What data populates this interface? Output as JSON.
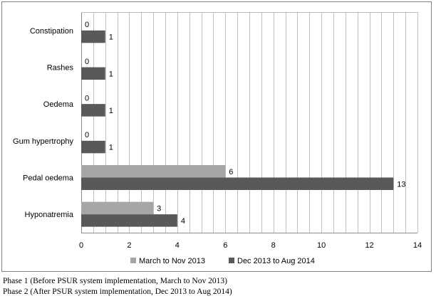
{
  "chart_data": {
    "type": "bar",
    "orientation": "horizontal",
    "categories": [
      "Constipation",
      "Rashes",
      "Oedema",
      "Gum hypertrophy",
      "Pedal oedema",
      "Hyponatremia"
    ],
    "series": [
      {
        "name": "March to Nov 2013",
        "values": [
          0,
          0,
          0,
          0,
          6,
          3
        ],
        "color": "#a6a6a6"
      },
      {
        "name": "Dec 2013 to Aug 2014",
        "values": [
          1,
          1,
          1,
          1,
          13,
          4
        ],
        "color": "#595959"
      }
    ],
    "xlim": [
      0,
      14
    ],
    "xticks": [
      "0",
      "2",
      "4",
      "6",
      "8",
      "10",
      "12",
      "14"
    ],
    "grid": true,
    "minor_grid_step": 0.5,
    "legend_position": "bottom"
  },
  "footnotes": [
    "Phase 1 (Before PSUR system implementation, March to Nov 2013)",
    "Phase 2 (After PSUR system implementation, Dec 2013 to Aug 2014)"
  ]
}
